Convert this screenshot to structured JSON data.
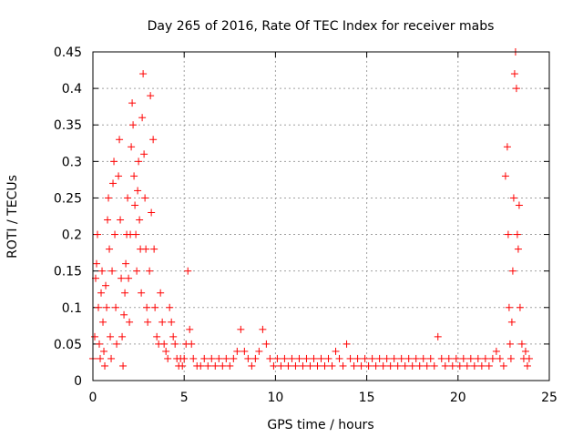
{
  "chart_data": {
    "type": "scatter",
    "title": "Day 265 of 2016, Rate Of TEC Index for receiver mabs",
    "xlabel": "GPS time / hours",
    "ylabel": "ROTI / TECUs",
    "xlim": [
      0,
      25
    ],
    "ylim": [
      0,
      0.45
    ],
    "xticks": [
      0,
      5,
      10,
      15,
      20,
      25
    ],
    "xtick_labels": [
      "0",
      "5",
      "10",
      "15",
      "20",
      "25"
    ],
    "yticks": [
      0,
      0.05,
      0.1,
      0.15,
      0.2,
      0.25,
      0.3,
      0.35,
      0.4,
      0.45
    ],
    "ytick_labels": [
      "0",
      "0.05",
      "0.1",
      "0.15",
      "0.2",
      "0.25",
      "0.3",
      "0.35",
      "0.4",
      "0.45"
    ],
    "grid": true,
    "marker": "+",
    "color": "#ff0000",
    "series": [
      {
        "name": "ROTI",
        "points": [
          [
            0.0,
            0.03
          ],
          [
            0.1,
            0.06
          ],
          [
            0.15,
            0.14
          ],
          [
            0.2,
            0.16
          ],
          [
            0.25,
            0.2
          ],
          [
            0.3,
            0.1
          ],
          [
            0.35,
            0.05
          ],
          [
            0.4,
            0.03
          ],
          [
            0.45,
            0.12
          ],
          [
            0.5,
            0.15
          ],
          [
            0.55,
            0.08
          ],
          [
            0.6,
            0.04
          ],
          [
            0.65,
            0.02
          ],
          [
            0.7,
            0.13
          ],
          [
            0.75,
            0.1
          ],
          [
            0.8,
            0.22
          ],
          [
            0.85,
            0.25
          ],
          [
            0.9,
            0.18
          ],
          [
            0.95,
            0.06
          ],
          [
            1.0,
            0.03
          ],
          [
            1.05,
            0.15
          ],
          [
            1.1,
            0.27
          ],
          [
            1.15,
            0.3
          ],
          [
            1.2,
            0.2
          ],
          [
            1.25,
            0.1
          ],
          [
            1.3,
            0.05
          ],
          [
            1.4,
            0.28
          ],
          [
            1.45,
            0.33
          ],
          [
            1.5,
            0.22
          ],
          [
            1.55,
            0.14
          ],
          [
            1.6,
            0.06
          ],
          [
            1.65,
            0.02
          ],
          [
            1.7,
            0.09
          ],
          [
            1.75,
            0.12
          ],
          [
            1.8,
            0.16
          ],
          [
            1.85,
            0.2
          ],
          [
            1.9,
            0.25
          ],
          [
            1.95,
            0.14
          ],
          [
            2.0,
            0.08
          ],
          [
            2.05,
            0.2
          ],
          [
            2.1,
            0.32
          ],
          [
            2.15,
            0.38
          ],
          [
            2.2,
            0.35
          ],
          [
            2.25,
            0.28
          ],
          [
            2.3,
            0.24
          ],
          [
            2.35,
            0.2
          ],
          [
            2.4,
            0.15
          ],
          [
            2.45,
            0.26
          ],
          [
            2.5,
            0.3
          ],
          [
            2.55,
            0.22
          ],
          [
            2.6,
            0.18
          ],
          [
            2.65,
            0.12
          ],
          [
            2.7,
            0.36
          ],
          [
            2.75,
            0.42
          ],
          [
            2.8,
            0.31
          ],
          [
            2.85,
            0.25
          ],
          [
            2.9,
            0.18
          ],
          [
            2.95,
            0.1
          ],
          [
            3.0,
            0.08
          ],
          [
            3.1,
            0.15
          ],
          [
            3.15,
            0.39
          ],
          [
            3.2,
            0.23
          ],
          [
            3.3,
            0.33
          ],
          [
            3.35,
            0.18
          ],
          [
            3.4,
            0.1
          ],
          [
            3.5,
            0.06
          ],
          [
            3.6,
            0.05
          ],
          [
            3.7,
            0.12
          ],
          [
            3.8,
            0.08
          ],
          [
            3.9,
            0.05
          ],
          [
            4.0,
            0.04
          ],
          [
            4.1,
            0.03
          ],
          [
            4.2,
            0.1
          ],
          [
            4.3,
            0.08
          ],
          [
            4.4,
            0.06
          ],
          [
            4.5,
            0.05
          ],
          [
            4.6,
            0.03
          ],
          [
            4.7,
            0.02
          ],
          [
            4.8,
            0.03
          ],
          [
            4.9,
            0.02
          ],
          [
            5.0,
            0.03
          ],
          [
            5.1,
            0.05
          ],
          [
            5.2,
            0.15
          ],
          [
            5.3,
            0.07
          ],
          [
            5.4,
            0.05
          ],
          [
            5.5,
            0.03
          ],
          [
            5.7,
            0.02
          ],
          [
            5.9,
            0.02
          ],
          [
            6.1,
            0.03
          ],
          [
            6.3,
            0.02
          ],
          [
            6.5,
            0.03
          ],
          [
            6.7,
            0.02
          ],
          [
            6.9,
            0.03
          ],
          [
            7.1,
            0.02
          ],
          [
            7.3,
            0.03
          ],
          [
            7.5,
            0.02
          ],
          [
            7.7,
            0.03
          ],
          [
            7.9,
            0.04
          ],
          [
            8.1,
            0.07
          ],
          [
            8.3,
            0.04
          ],
          [
            8.5,
            0.03
          ],
          [
            8.7,
            0.02
          ],
          [
            8.9,
            0.03
          ],
          [
            9.1,
            0.04
          ],
          [
            9.3,
            0.07
          ],
          [
            9.5,
            0.05
          ],
          [
            9.7,
            0.03
          ],
          [
            9.9,
            0.02
          ],
          [
            10.1,
            0.03
          ],
          [
            10.3,
            0.02
          ],
          [
            10.5,
            0.03
          ],
          [
            10.7,
            0.02
          ],
          [
            10.9,
            0.03
          ],
          [
            11.1,
            0.02
          ],
          [
            11.3,
            0.03
          ],
          [
            11.5,
            0.02
          ],
          [
            11.7,
            0.03
          ],
          [
            11.9,
            0.02
          ],
          [
            12.1,
            0.03
          ],
          [
            12.3,
            0.02
          ],
          [
            12.5,
            0.03
          ],
          [
            12.7,
            0.02
          ],
          [
            12.9,
            0.03
          ],
          [
            13.1,
            0.02
          ],
          [
            13.3,
            0.04
          ],
          [
            13.5,
            0.03
          ],
          [
            13.7,
            0.02
          ],
          [
            13.9,
            0.05
          ],
          [
            14.1,
            0.03
          ],
          [
            14.3,
            0.02
          ],
          [
            14.5,
            0.03
          ],
          [
            14.7,
            0.02
          ],
          [
            14.9,
            0.03
          ],
          [
            15.1,
            0.02
          ],
          [
            15.3,
            0.03
          ],
          [
            15.5,
            0.02
          ],
          [
            15.7,
            0.03
          ],
          [
            15.9,
            0.02
          ],
          [
            16.1,
            0.03
          ],
          [
            16.3,
            0.02
          ],
          [
            16.5,
            0.03
          ],
          [
            16.7,
            0.02
          ],
          [
            16.9,
            0.03
          ],
          [
            17.1,
            0.02
          ],
          [
            17.3,
            0.03
          ],
          [
            17.5,
            0.02
          ],
          [
            17.7,
            0.03
          ],
          [
            17.9,
            0.02
          ],
          [
            18.1,
            0.03
          ],
          [
            18.3,
            0.02
          ],
          [
            18.5,
            0.03
          ],
          [
            18.7,
            0.02
          ],
          [
            18.9,
            0.06
          ],
          [
            19.1,
            0.03
          ],
          [
            19.3,
            0.02
          ],
          [
            19.5,
            0.03
          ],
          [
            19.7,
            0.02
          ],
          [
            19.9,
            0.03
          ],
          [
            20.1,
            0.02
          ],
          [
            20.3,
            0.03
          ],
          [
            20.5,
            0.02
          ],
          [
            20.7,
            0.03
          ],
          [
            20.9,
            0.02
          ],
          [
            21.1,
            0.03
          ],
          [
            21.3,
            0.02
          ],
          [
            21.5,
            0.03
          ],
          [
            21.7,
            0.02
          ],
          [
            21.9,
            0.03
          ],
          [
            22.1,
            0.04
          ],
          [
            22.3,
            0.03
          ],
          [
            22.5,
            0.02
          ],
          [
            22.6,
            0.28
          ],
          [
            22.7,
            0.32
          ],
          [
            22.75,
            0.2
          ],
          [
            22.8,
            0.1
          ],
          [
            22.85,
            0.05
          ],
          [
            22.9,
            0.03
          ],
          [
            22.95,
            0.08
          ],
          [
            23.0,
            0.15
          ],
          [
            23.05,
            0.25
          ],
          [
            23.1,
            0.42
          ],
          [
            23.15,
            0.45
          ],
          [
            23.2,
            0.4
          ],
          [
            23.25,
            0.2
          ],
          [
            23.3,
            0.18
          ],
          [
            23.35,
            0.24
          ],
          [
            23.4,
            0.1
          ],
          [
            23.5,
            0.05
          ],
          [
            23.6,
            0.03
          ],
          [
            23.7,
            0.04
          ],
          [
            23.8,
            0.02
          ],
          [
            23.9,
            0.03
          ]
        ]
      }
    ]
  }
}
